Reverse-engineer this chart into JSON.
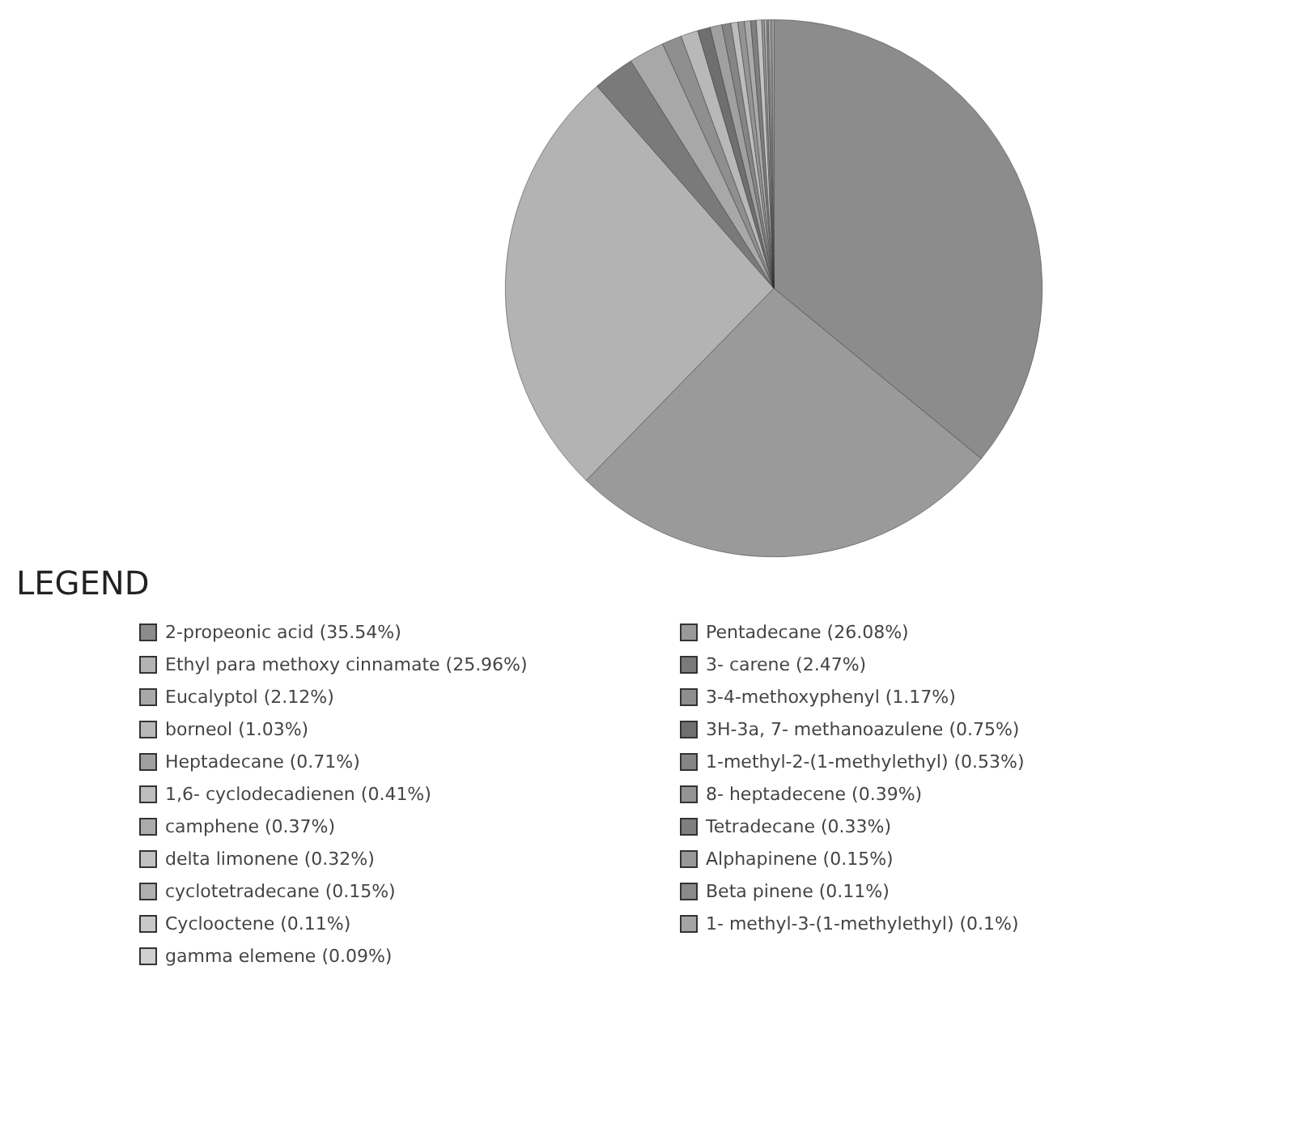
{
  "chart_data": {
    "type": "pie",
    "legend": "bottom",
    "legend_title": "LEGEND",
    "categories": [
      "2-propeonic acid (35.54%)",
      "Pentadecane (26.08%)",
      "Ethyl para methoxy cinnamate (25.96%)",
      "3- carene (2.47%)",
      "Eucalyptol (2.12%)",
      "3-4-methoxyphenyl (1.17%)",
      "borneol (1.03%)",
      "3H-3a, 7- methanoazulene  (0.75%)",
      "Heptadecane (0.71%)",
      "1-methyl-2-(1-methylethyl) (0.53%)",
      "1,6- cyclodecadienen (0.41%)",
      "8- heptadecene (0.39%)",
      "camphene (0.37%)",
      "Tetradecane (0.33%)",
      "delta limonene (0.32%)",
      "Alphapinene (0.15%)",
      "cyclotetradecane (0.15%)",
      "Beta pinene (0.11%)",
      "Cyclooctene (0.11%)",
      "1- methyl-3-(1-methylethyl) (0.1%)",
      "gamma elemene  (0.09%)"
    ],
    "values": [
      35.54,
      26.08,
      25.96,
      2.47,
      2.12,
      1.17,
      1.03,
      0.75,
      0.71,
      0.53,
      0.41,
      0.39,
      0.37,
      0.33,
      0.32,
      0.15,
      0.15,
      0.11,
      0.11,
      0.1,
      0.09
    ],
    "colors": [
      "#8c8c8c",
      "#9a9a9a",
      "#b3b3b3",
      "#7a7a7a",
      "#a8a8a8",
      "#8f8f8f",
      "#b8b8b8",
      "#6f6f6f",
      "#a0a0a0",
      "#858585",
      "#bdbdbd",
      "#949494",
      "#ababab",
      "#7f7f7f",
      "#c2c2c2",
      "#989898",
      "#b0b0b0",
      "#8a8a8a",
      "#c8c8c8",
      "#a4a4a4",
      "#d0d0d0"
    ]
  }
}
